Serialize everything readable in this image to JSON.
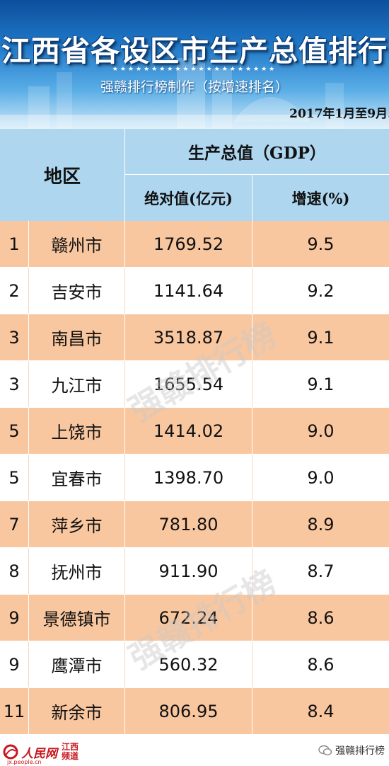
{
  "header": {
    "title": "江西省各设区市生产总值排行",
    "stars": "★★★★★★★★★★★★★★★★★★★★★",
    "subtitle": "强赣排行榜制作（按增速排名）",
    "date": "2017年1月至9月."
  },
  "table": {
    "col_region": "地区",
    "col_gdp": "生产总值（GDP）",
    "col_absolute": "绝对值(亿元)",
    "col_growth": "增速(%)",
    "rows": [
      {
        "rank": "1",
        "city": "赣州市",
        "gdp": "1769.52",
        "growth": "9.5"
      },
      {
        "rank": "2",
        "city": "吉安市",
        "gdp": "1141.64",
        "growth": "9.2"
      },
      {
        "rank": "3",
        "city": "南昌市",
        "gdp": "3518.87",
        "growth": "9.1"
      },
      {
        "rank": "3",
        "city": "九江市",
        "gdp": "1655.54",
        "growth": "9.1"
      },
      {
        "rank": "5",
        "city": "上饶市",
        "gdp": "1414.02",
        "growth": "9.0"
      },
      {
        "rank": "5",
        "city": "宜春市",
        "gdp": "1398.70",
        "growth": "9.0"
      },
      {
        "rank": "7",
        "city": "萍乡市",
        "gdp": "781.80",
        "growth": "8.9"
      },
      {
        "rank": "8",
        "city": "抚州市",
        "gdp": "911.90",
        "growth": "8.7"
      },
      {
        "rank": "9",
        "city": "景德镇市",
        "gdp": "672.24",
        "growth": "8.6"
      },
      {
        "rank": "9",
        "city": "鹰潭市",
        "gdp": "560.32",
        "growth": "8.6"
      },
      {
        "rank": "11",
        "city": "新余市",
        "gdp": "806.95",
        "growth": "8.4"
      }
    ]
  },
  "watermarks": [
    "强赣排行榜",
    "强赣排行榜"
  ],
  "footer": {
    "logo_text": "人民网",
    "logo_site": "jx.people.cn",
    "logo_channel_1": "江西",
    "logo_channel_2": "频道",
    "account_icon": "wechat-icon",
    "account_name": "强赣排行榜"
  },
  "colors": {
    "banner_top": "#0d4f9c",
    "header_row": "#aed6ef",
    "alt_row": "#f9c79f",
    "logo_red": "#c8161d"
  }
}
